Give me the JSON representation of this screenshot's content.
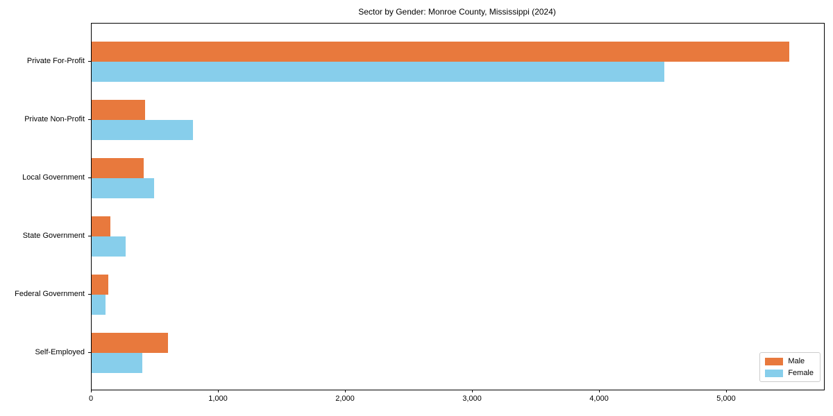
{
  "chart_data": {
    "type": "bar",
    "orientation": "horizontal",
    "title": "Sector by Gender: Monroe County, Mississippi (2024)",
    "xlabel": "",
    "ylabel": "",
    "categories": [
      "Private For-Profit",
      "Private Non-Profit",
      "Local Government",
      "State Government",
      "Federal Government",
      "Self-Employed"
    ],
    "series": [
      {
        "name": "Male",
        "color": "#E8793D",
        "values": [
          5490,
          420,
          410,
          145,
          130,
          600
        ]
      },
      {
        "name": "Female",
        "color": "#87CEEB",
        "values": [
          4510,
          800,
          490,
          270,
          110,
          400
        ]
      }
    ],
    "xlim": [
      0,
      5765
    ],
    "x_ticks": [
      0,
      1000,
      2000,
      3000,
      4000,
      5000
    ],
    "x_tick_labels": [
      "0",
      "1,000",
      "2,000",
      "3,000",
      "4,000",
      "5,000"
    ],
    "legend_position": "lower right",
    "grid": false
  }
}
